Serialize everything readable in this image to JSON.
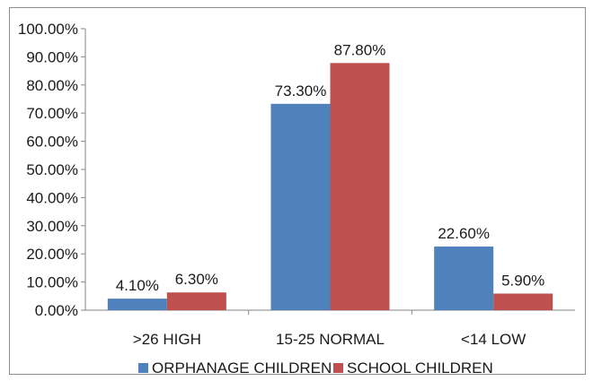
{
  "chart_data": {
    "type": "bar",
    "categories": [
      ">26 HIGH",
      "15-25 NORMAL",
      "<14 LOW"
    ],
    "series": [
      {
        "name": "ORPHANAGE CHILDREN",
        "values": [
          4.1,
          73.3,
          22.6
        ],
        "labels": [
          "4.10%",
          "73.30%",
          "22.60%"
        ],
        "color": "#4f81bd"
      },
      {
        "name": "SCHOOL CHILDREN",
        "values": [
          6.3,
          87.8,
          5.9
        ],
        "labels": [
          "6.30%",
          "87.80%",
          "5.90%"
        ],
        "color": "#c0504d"
      }
    ],
    "ylim": [
      0,
      100
    ],
    "yticks": [
      "0.00%",
      "10.00%",
      "20.00%",
      "30.00%",
      "40.00%",
      "50.00%",
      "60.00%",
      "70.00%",
      "80.00%",
      "90.00%",
      "100.00%"
    ],
    "grid": false,
    "legend_position": "bottom",
    "title": "",
    "xlabel": "",
    "ylabel": ""
  }
}
